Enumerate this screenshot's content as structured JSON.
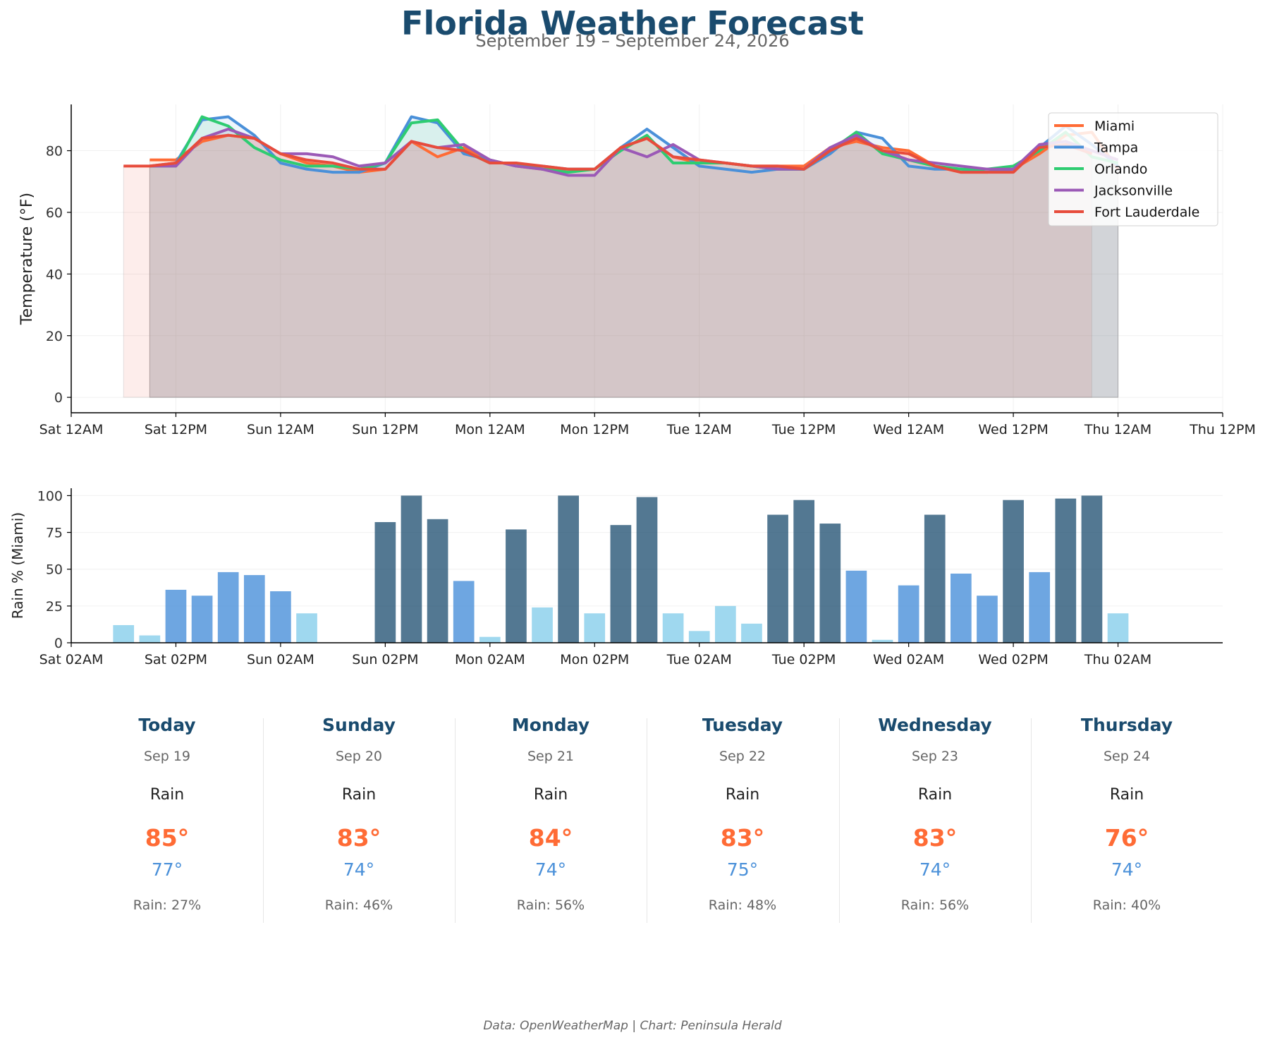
{
  "title": "Florida Weather Forecast",
  "subtitle": "September 19 – September 24, 2026",
  "footer": "Data: OpenWeatherMap | Chart: Peninsula Herald",
  "colors": {
    "title": "#1a4b6e",
    "high": "#ff6b35",
    "low": "#4a90d9",
    "rain_high": "#1a4b6e",
    "rain_mid": "#4a90d9",
    "rain_low": "#87ceeb"
  },
  "chart_data": [
    {
      "type": "line",
      "ylabel": "Temperature (°F)",
      "xlabel": "",
      "ylim": [
        -5,
        95
      ],
      "yticks": [
        0,
        20,
        40,
        60,
        80
      ],
      "x_tick_labels": [
        "Sat 12AM",
        "Sat 12PM",
        "Sun 12AM",
        "Sun 12PM",
        "Mon 12AM",
        "Mon 12PM",
        "Tue 12AM",
        "Tue 12PM",
        "Wed 12AM",
        "Wed 12PM",
        "Thu 12AM",
        "Thu 12PM"
      ],
      "x_unit": "hour offset from Sat 12AM (3-hour steps)",
      "grid": true,
      "legend_position": "top-right",
      "area_fill": true,
      "series": [
        {
          "name": "Miami",
          "color": "#ff6b35",
          "x": [
            9,
            12,
            15,
            18,
            21,
            24,
            27,
            30,
            33,
            36,
            39,
            42,
            45,
            48,
            51,
            54,
            57,
            60,
            63,
            66,
            69,
            72,
            75,
            78,
            81,
            84,
            87,
            90,
            93,
            96,
            99,
            102,
            105,
            108,
            111,
            114,
            117,
            120
          ],
          "values": [
            77,
            77,
            83,
            85,
            84,
            79,
            76,
            75,
            73,
            74,
            83,
            78,
            81,
            77,
            75,
            74,
            74,
            74,
            81,
            84,
            78,
            76,
            76,
            75,
            75,
            75,
            81,
            83,
            81,
            80,
            75,
            73,
            73,
            74,
            79,
            85,
            86,
            74
          ]
        },
        {
          "name": "Tampa",
          "color": "#4a90d9",
          "x": [
            9,
            12,
            15,
            18,
            21,
            24,
            27,
            30,
            33,
            36,
            39,
            42,
            45,
            48,
            51,
            54,
            57,
            60,
            63,
            66,
            69,
            72,
            75,
            78,
            81,
            84,
            87,
            90,
            93,
            96,
            99,
            102,
            105,
            108,
            111,
            114,
            117,
            120
          ],
          "values": [
            75,
            76,
            90,
            91,
            85,
            76,
            74,
            73,
            73,
            76,
            91,
            89,
            79,
            77,
            75,
            75,
            74,
            74,
            81,
            87,
            81,
            75,
            74,
            73,
            74,
            74,
            79,
            86,
            84,
            75,
            74,
            74,
            73,
            74,
            81,
            88,
            82,
            75
          ]
        },
        {
          "name": "Orlando",
          "color": "#2ecc71",
          "x": [
            9,
            12,
            15,
            18,
            21,
            24,
            27,
            30,
            33,
            36,
            39,
            42,
            45,
            48,
            51,
            54,
            57,
            60,
            63,
            66,
            69,
            72,
            75,
            78,
            81,
            84,
            87,
            90,
            93,
            96,
            99,
            102,
            105,
            108,
            111,
            114,
            117,
            120
          ],
          "values": [
            75,
            75,
            91,
            88,
            81,
            77,
            75,
            75,
            74,
            76,
            89,
            90,
            80,
            76,
            76,
            74,
            73,
            74,
            80,
            85,
            76,
            76,
            76,
            75,
            74,
            74,
            80,
            86,
            79,
            77,
            75,
            74,
            74,
            75,
            80,
            86,
            78,
            76
          ]
        },
        {
          "name": "Jacksonville",
          "color": "#9b59b6",
          "x": [
            9,
            12,
            15,
            18,
            21,
            24,
            27,
            30,
            33,
            36,
            39,
            42,
            45,
            48,
            51,
            54,
            57,
            60,
            63,
            66,
            69,
            72,
            75,
            78,
            81,
            84,
            87,
            90,
            93,
            96,
            99,
            102,
            105,
            108,
            111,
            114,
            117,
            120
          ],
          "values": [
            75,
            75,
            84,
            87,
            84,
            79,
            79,
            78,
            75,
            76,
            83,
            81,
            82,
            77,
            75,
            74,
            72,
            72,
            81,
            78,
            82,
            77,
            76,
            75,
            74,
            74,
            81,
            85,
            80,
            77,
            76,
            75,
            74,
            74,
            82,
            83,
            80,
            77
          ]
        },
        {
          "name": "Fort Lauderdale",
          "color": "#e74c3c",
          "x": [
            6,
            9,
            12,
            15,
            18,
            21,
            24,
            27,
            30,
            33,
            36,
            39,
            42,
            45,
            48,
            51,
            54,
            57,
            60,
            63,
            66,
            69,
            72,
            75,
            78,
            81,
            84,
            87,
            90,
            93,
            96,
            99,
            102,
            105,
            108,
            111,
            114,
            117
          ],
          "values": [
            75,
            75,
            76,
            84,
            85,
            84,
            79,
            77,
            76,
            74,
            74,
            83,
            81,
            80,
            76,
            76,
            75,
            74,
            74,
            81,
            84,
            78,
            77,
            76,
            75,
            75,
            74,
            80,
            84,
            80,
            79,
            75,
            73,
            73,
            73,
            81,
            82,
            79
          ]
        }
      ]
    },
    {
      "type": "bar",
      "ylabel": "Rain % (Miami)",
      "ylim": [
        0,
        105
      ],
      "yticks": [
        0,
        25,
        50,
        75,
        100
      ],
      "x_tick_labels": [
        "Sat 02AM",
        "Sat 02PM",
        "Sun 02AM",
        "Sun 02PM",
        "Mon 02AM",
        "Mon 02PM",
        "Tue 02AM",
        "Tue 02PM",
        "Wed 02AM",
        "Wed 02PM",
        "Thu 02AM"
      ],
      "x_unit": "hour offset from Sat 02AM (3-hour steps)",
      "grid": true,
      "x": [
        6,
        9,
        12,
        15,
        18,
        21,
        24,
        27,
        30,
        33,
        36,
        39,
        42,
        45,
        48,
        51,
        54,
        57,
        60,
        63,
        66,
        69,
        72,
        75,
        78,
        81,
        84,
        87,
        90,
        93,
        96,
        99,
        102,
        105,
        108,
        111,
        114,
        117,
        120,
        123
      ],
      "values": [
        12,
        5,
        36,
        32,
        48,
        46,
        35,
        20,
        0,
        0,
        82,
        100,
        84,
        42,
        4,
        77,
        24,
        100,
        20,
        80,
        99,
        20,
        8,
        25,
        13,
        87,
        97,
        81,
        49,
        2,
        39,
        87,
        47,
        32,
        97,
        48,
        98,
        100,
        20,
        0
      ]
    }
  ],
  "forecast": [
    {
      "day": "Today",
      "date": "Sep 19",
      "condition": "Rain",
      "high": "85°",
      "low": "77°",
      "rain": "Rain: 27%"
    },
    {
      "day": "Sunday",
      "date": "Sep 20",
      "condition": "Rain",
      "high": "83°",
      "low": "74°",
      "rain": "Rain: 46%"
    },
    {
      "day": "Monday",
      "date": "Sep 21",
      "condition": "Rain",
      "high": "84°",
      "low": "74°",
      "rain": "Rain: 56%"
    },
    {
      "day": "Tuesday",
      "date": "Sep 22",
      "condition": "Rain",
      "high": "83°",
      "low": "75°",
      "rain": "Rain: 48%"
    },
    {
      "day": "Wednesday",
      "date": "Sep 23",
      "condition": "Rain",
      "high": "83°",
      "low": "74°",
      "rain": "Rain: 56%"
    },
    {
      "day": "Thursday",
      "date": "Sep 24",
      "condition": "Rain",
      "high": "76°",
      "low": "74°",
      "rain": "Rain: 40%"
    }
  ]
}
